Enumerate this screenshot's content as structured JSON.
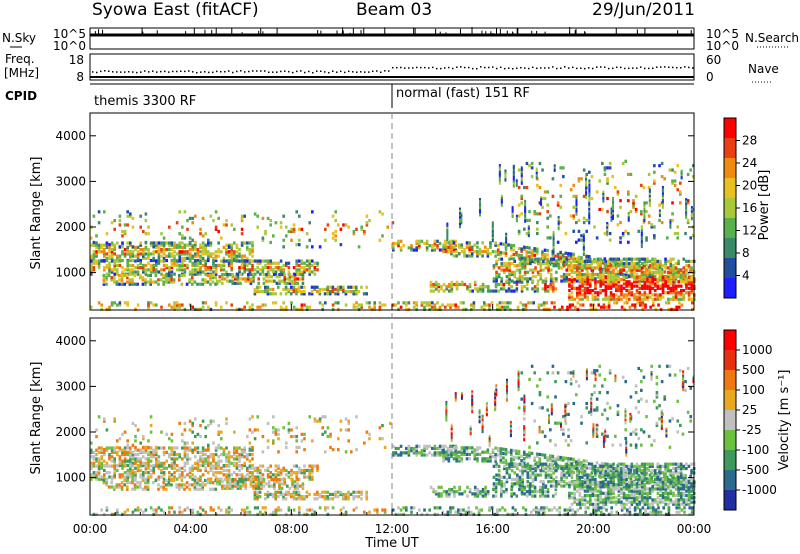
{
  "header": {
    "station": "Syowa East (fitACF)",
    "beam": "Beam 03",
    "date": "29/Jun/2011"
  },
  "top_panel": {
    "left_label": "N.Sky",
    "right_label": "N.Search",
    "left_ticks": [
      "10^5",
      "10^0"
    ],
    "right_ticks": [
      "10^5",
      "10^0"
    ]
  },
  "freq_panel": {
    "left_label_line1": "Freq.",
    "left_label_line2": "[MHz]",
    "right_label": "Nave",
    "left_ticks": [
      "18",
      "8"
    ],
    "right_ticks": [
      "60",
      "0"
    ]
  },
  "cpid_panel": {
    "label": "CPID",
    "mode1": "themis 3300 RF",
    "mode2": "normal (fast) 151 RF"
  },
  "chart_data": [
    {
      "type": "heatmap",
      "quantity": "Power",
      "ylabel": "Slant Range [km]",
      "ylim": [
        180,
        4500
      ],
      "yticks": [
        "1000",
        "2000",
        "3000",
        "4000"
      ],
      "colorbar_label": "Power [dB]",
      "colorbar_ticks": [
        "28",
        "24",
        "20",
        "16",
        "12",
        "8",
        "4"
      ]
    },
    {
      "type": "heatmap",
      "quantity": "Velocity",
      "ylabel": "Slant Range [km]",
      "ylim": [
        180,
        4500
      ],
      "yticks": [
        "1000",
        "2000",
        "3000",
        "4000"
      ],
      "colorbar_label": "Velocity [m s⁻¹]",
      "colorbar_ticks": [
        "1000",
        "500",
        "100",
        "25",
        "-25",
        "-100",
        "-500",
        "-1000"
      ]
    }
  ],
  "x_axis": {
    "xlabel": "Time UT",
    "xticks": [
      "00:00",
      "04:00",
      "08:00",
      "12:00",
      "16:00",
      "20:00",
      "00:00"
    ],
    "xlim_hours": [
      0,
      24
    ]
  },
  "colors": {
    "power_scale": [
      "#1e1eff",
      "#234ea0",
      "#3a8a6a",
      "#5ab04a",
      "#a8c83a",
      "#e8c020",
      "#f08a10",
      "#e84010",
      "#ff0000"
    ],
    "velocity_scale": [
      "#2030a0",
      "#2a6a8a",
      "#3e9a5a",
      "#6cc040",
      "#c0c0c0",
      "#e8a820",
      "#f07810",
      "#e83010",
      "#ff0000"
    ]
  }
}
